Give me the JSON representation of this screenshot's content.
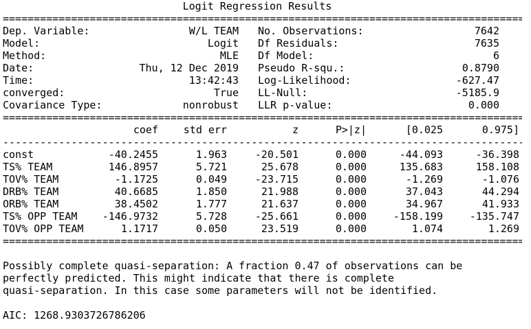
{
  "title": "Logit Regression Results",
  "summary_left": [
    {
      "label": "Dep. Variable:",
      "value": "W/L TEAM"
    },
    {
      "label": "Model:",
      "value": "Logit"
    },
    {
      "label": "Method:",
      "value": "MLE"
    },
    {
      "label": "Date:",
      "value": "Thu, 12 Dec 2019"
    },
    {
      "label": "Time:",
      "value": "13:42:43"
    },
    {
      "label": "converged:",
      "value": "True"
    },
    {
      "label": "Covariance Type:",
      "value": "nonrobust"
    }
  ],
  "summary_right": [
    {
      "label": "No. Observations:",
      "value": "7642"
    },
    {
      "label": "Df Residuals:",
      "value": "7635"
    },
    {
      "label": "Df Model:",
      "value": "6"
    },
    {
      "label": "Pseudo R-squ.:",
      "value": "0.8790"
    },
    {
      "label": "Log-Likelihood:",
      "value": "-627.47"
    },
    {
      "label": "LL-Null:",
      "value": "-5185.9"
    },
    {
      "label": "LLR p-value:",
      "value": "0.000"
    }
  ],
  "coef_headers": [
    "coef",
    "std err",
    "z",
    "P>|z|",
    "[0.025",
    "0.975]"
  ],
  "coef_rows": [
    {
      "name": "const",
      "cells": [
        "-40.2455",
        "1.963",
        "-20.501",
        "0.000",
        "-44.093",
        "-36.398"
      ]
    },
    {
      "name": "TS% TEAM",
      "cells": [
        "146.8957",
        "5.721",
        "25.678",
        "0.000",
        "135.683",
        "158.108"
      ]
    },
    {
      "name": "TOV% TEAM",
      "cells": [
        "-1.1725",
        "0.049",
        "-23.715",
        "0.000",
        "-1.269",
        "-1.076"
      ]
    },
    {
      "name": "DRB% TEAM",
      "cells": [
        "40.6685",
        "1.850",
        "21.988",
        "0.000",
        "37.043",
        "44.294"
      ]
    },
    {
      "name": "ORB% TEAM",
      "cells": [
        "38.4502",
        "1.777",
        "21.637",
        "0.000",
        "34.967",
        "41.933"
      ]
    },
    {
      "name": "TS% OPP TEAM",
      "cells": [
        "-146.9732",
        "5.728",
        "-25.661",
        "0.000",
        "-158.199",
        "-135.747"
      ]
    },
    {
      "name": "TOV% OPP TEAM",
      "cells": [
        "1.1717",
        "0.050",
        "23.519",
        "0.000",
        "1.074",
        "1.269"
      ]
    }
  ],
  "note_lines": [
    "Possibly complete quasi-separation: A fraction 0.47 of observations can be",
    "perfectly predicted. This might indicate that there is complete",
    "quasi-separation. In this case some parameters will not be identified."
  ],
  "aic": "AIC: 1268.9303726786206"
}
